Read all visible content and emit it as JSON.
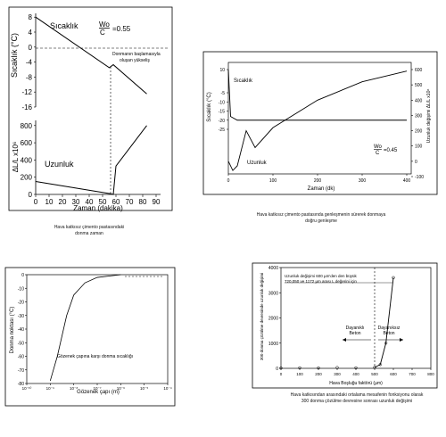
{
  "chart_data": [
    {
      "type": "line",
      "xlabel": "Zaman (dakika)",
      "x_ticks": [
        "0",
        "10",
        "20",
        "30",
        "40",
        "50",
        "60",
        "70",
        "80",
        "90"
      ],
      "xlim": [
        0,
        90
      ],
      "top": {
        "ylabel": "Sıcaklık (°C)",
        "y_ticks": [
          "8",
          "4",
          "0",
          "-4",
          "-8",
          "-12",
          "-16"
        ],
        "ylim": [
          -16,
          9
        ],
        "series": [
          {
            "name": "Sıcaklık",
            "x": [
              0,
              55,
              58,
              83
            ],
            "y": [
              8,
              -5.5,
              -4.7,
              -12.5
            ]
          }
        ],
        "label_series": "Sıcaklık",
        "label_ratio": "Wo/C = 0.55",
        "ratio_num": "Wo",
        "ratio_den": "C",
        "ratio_val": "=0.55",
        "annotation": "Donmanın başlamasıyla oluşan yükseliş"
      },
      "bottom": {
        "ylabel": "ΔL/L x10⁶",
        "y_ticks": [
          "800",
          "600",
          "400",
          "200",
          "0"
        ],
        "ylim": [
          0,
          860
        ],
        "series": [
          {
            "name": "Uzunluk",
            "x": [
              0,
              55,
              58,
              60,
              83
            ],
            "y": [
              150,
              10,
              0,
              330,
              800
            ]
          }
        ],
        "label_series": "Uzunluk"
      },
      "caption": "Hava katkısız çimento pastasındaki donma zaman"
    },
    {
      "type": "line",
      "xlabel": "Zaman (dk)",
      "x_ticks": [
        "0",
        "100",
        "200",
        "300",
        "400"
      ],
      "xlim": [
        0,
        410
      ],
      "ylabel_left": "Sıcaklık (°C)",
      "y_ticks_left": [
        "10",
        "-5",
        "-10",
        "-15",
        "-20",
        "-25"
      ],
      "ylabel_right": "Uzunluk değişimi ΔL/L x10⁶",
      "y_ticks_right": [
        "600",
        "500",
        "400",
        "300",
        "200",
        "100",
        "0",
        "-100"
      ],
      "series": [
        {
          "name": "Sıcaklık",
          "x": [
            0,
            5,
            20,
            400
          ],
          "y": [
            10,
            -18,
            -20,
            -20
          ]
        },
        {
          "name": "Uzunluk",
          "x": [
            0,
            10,
            20,
            40,
            60,
            100,
            200,
            300,
            400
          ],
          "y": [
            0,
            -60,
            -30,
            200,
            90,
            220,
            400,
            520,
            590
          ]
        }
      ],
      "label_temp": "Sıcaklık",
      "label_len": "Uzunluk",
      "label_ratio": "Wo/C = 0.45",
      "ratio_num": "Wo",
      "ratio_den": "C",
      "ratio_val": "=0.45",
      "caption": "Hava katkısız çimento pastasında genleşmenin sürerek donmaya doğru genleşme"
    },
    {
      "type": "line",
      "xlabel": "Gözenek çapı (m)",
      "ylabel": "Donma noktası (°C)",
      "x_ticks": [
        "10⁻¹⁰",
        "10⁻⁹",
        "10⁻⁸",
        "10⁻⁷",
        "10⁻⁶",
        "10⁻⁵",
        "10⁻⁴"
      ],
      "y_ticks": [
        "0",
        "-10",
        "-20",
        "-30",
        "-40",
        "-50",
        "-60",
        "-70",
        "-80"
      ],
      "ylim": [
        -80,
        0
      ],
      "log_x": true,
      "series": [
        {
          "name": "Gözenek",
          "x": [
            "1e-9",
            "2e-9",
            "5e-9",
            "1e-8",
            "3e-8",
            "1e-7",
            "1e-6"
          ],
          "y": [
            -78,
            -60,
            -30,
            -15,
            -6,
            -2,
            0
          ]
        }
      ],
      "annotation": "Gözenek çapına karşı donma sıcaklığı"
    },
    {
      "type": "line",
      "xlabel": "Hava Boşluğu faktörü (µm)",
      "ylabel": "300 donma çözülme devresinde uzunluk değişimi",
      "x_ticks": [
        "0",
        "100",
        "200",
        "300",
        "400",
        "500",
        "600",
        "700",
        "800"
      ],
      "y_ticks": [
        "4000",
        "3000",
        "2000",
        "1000",
        "0"
      ],
      "xlim": [
        0,
        800
      ],
      "ylim": [
        0,
        4000
      ],
      "series": [
        {
          "name": "Uzunluk",
          "x": [
            0,
            100,
            200,
            300,
            400,
            500,
            530,
            560,
            600
          ],
          "y": [
            10,
            20,
            15,
            30,
            20,
            40,
            150,
            1000,
            3600
          ]
        }
      ],
      "note": "Uzunluk değişimi 600 µm'den den büyük 720,050 ve 1172 µm arası L değerini için",
      "durable": "Dayanıklı Beton",
      "nondurable": "Dayanıksız Beton",
      "caption": "Hava katkısından arasındaki ortalama mesafenin fonksiyonu olarak 300 donma çözülme devresine sonrası uzunluk değişimi"
    }
  ]
}
